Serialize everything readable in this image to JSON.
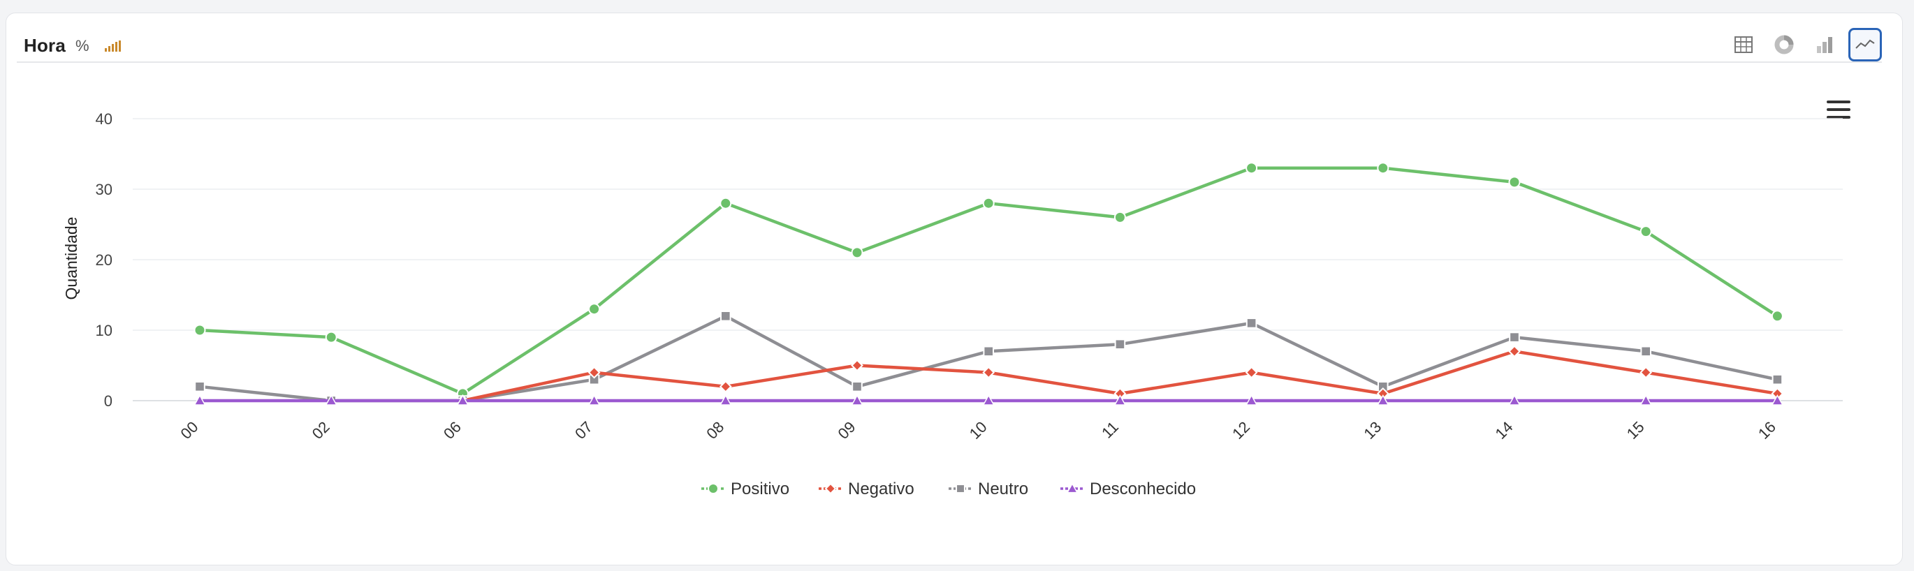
{
  "header": {
    "title": "Hora",
    "percent_label": "%",
    "toolbar": [
      {
        "name": "table-view",
        "icon": "table-icon",
        "active": false
      },
      {
        "name": "pie-view",
        "icon": "donut-icon",
        "active": false
      },
      {
        "name": "bar-view",
        "icon": "bar-chart-icon",
        "active": false
      },
      {
        "name": "line-view",
        "icon": "line-chart-icon",
        "active": true
      }
    ]
  },
  "chart_data": {
    "type": "line",
    "title": "",
    "xlabel": "",
    "ylabel": "Quantidade",
    "categories": [
      "00",
      "02",
      "06",
      "07",
      "08",
      "09",
      "10",
      "11",
      "12",
      "13",
      "14",
      "15",
      "16"
    ],
    "ylim": [
      0,
      40
    ],
    "yticks": [
      0,
      10,
      20,
      30,
      40
    ],
    "grid": true,
    "legend_position": "bottom",
    "series": [
      {
        "name": "Positivo",
        "color": "#6cc06a",
        "marker": "circle",
        "values": [
          10,
          9,
          1,
          13,
          28,
          21,
          28,
          26,
          33,
          33,
          31,
          24,
          12
        ]
      },
      {
        "name": "Negativo",
        "color": "#e2533f",
        "marker": "diamond",
        "values": [
          null,
          null,
          0,
          4,
          2,
          5,
          4,
          1,
          4,
          1,
          7,
          4,
          1
        ]
      },
      {
        "name": "Neutro",
        "color": "#8e8e93",
        "marker": "square",
        "values": [
          2,
          0,
          0,
          3,
          12,
          2,
          7,
          8,
          11,
          2,
          9,
          7,
          3
        ]
      },
      {
        "name": "Desconhecido",
        "color": "#9b59d0",
        "marker": "triangle",
        "values": [
          0,
          0,
          0,
          0,
          0,
          0,
          0,
          0,
          0,
          0,
          0,
          0,
          0
        ]
      }
    ]
  }
}
